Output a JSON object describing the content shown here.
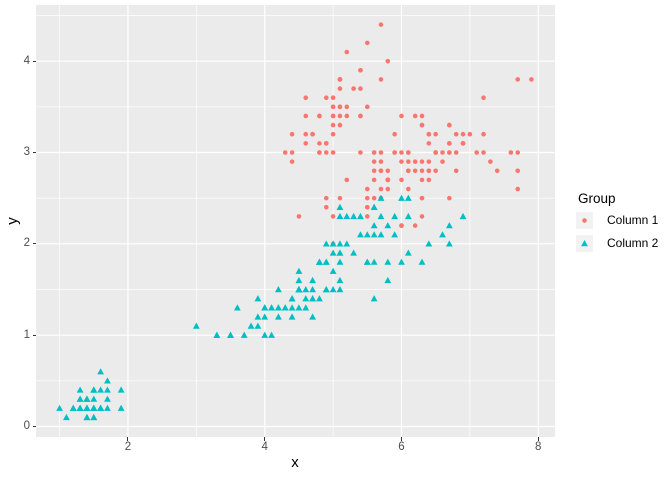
{
  "style": {
    "figure_bg": "#FFFFFF",
    "panel_bg": "#EBEBEB",
    "grid_color": "#FFFFFF",
    "tick_mark_color": "#333333",
    "tick_label_color": "#4D4D4D",
    "text_color": "#000000",
    "legend_key_bg": "#F2F2F2",
    "series1_color": "#F8766D",
    "series2_color": "#00BFC4"
  },
  "chart_data": {
    "type": "scatter",
    "title": "",
    "xlabel": "x",
    "ylabel": "y",
    "xlim": [
      0.655,
      8.245
    ],
    "ylim": [
      -0.115,
      4.615
    ],
    "x_ticks": {
      "major": [
        2,
        4,
        6,
        8
      ],
      "minor": [
        1,
        3,
        5,
        7
      ],
      "labels": [
        "2",
        "4",
        "6",
        "8"
      ]
    },
    "y_ticks": {
      "major": [
        0,
        1,
        2,
        3,
        4
      ],
      "minor": [
        0.5,
        1.5,
        2.5,
        3.5,
        4.5
      ],
      "labels": [
        "0",
        "1",
        "2",
        "3",
        "4"
      ]
    },
    "grid": "major+minor",
    "legend_title": "Group",
    "legend_position": "right",
    "series": [
      {
        "name": "Column 1",
        "marker": "circle",
        "color": "#F8766D",
        "points": [
          [
            5.1,
            3.5
          ],
          [
            4.9,
            3.0
          ],
          [
            4.7,
            3.2
          ],
          [
            4.6,
            3.1
          ],
          [
            5.0,
            3.6
          ],
          [
            5.4,
            3.9
          ],
          [
            4.6,
            3.4
          ],
          [
            5.0,
            3.4
          ],
          [
            4.4,
            2.9
          ],
          [
            4.9,
            3.1
          ],
          [
            5.4,
            3.7
          ],
          [
            4.8,
            3.4
          ],
          [
            4.8,
            3.0
          ],
          [
            4.3,
            3.0
          ],
          [
            5.8,
            4.0
          ],
          [
            5.7,
            4.4
          ],
          [
            5.4,
            3.9
          ],
          [
            5.1,
            3.5
          ],
          [
            5.7,
            3.8
          ],
          [
            5.1,
            3.8
          ],
          [
            5.4,
            3.4
          ],
          [
            5.1,
            3.7
          ],
          [
            4.6,
            3.6
          ],
          [
            5.1,
            3.3
          ],
          [
            4.8,
            3.4
          ],
          [
            5.0,
            3.0
          ],
          [
            5.0,
            3.4
          ],
          [
            5.2,
            3.5
          ],
          [
            5.2,
            3.4
          ],
          [
            4.7,
            3.2
          ],
          [
            4.8,
            3.1
          ],
          [
            5.4,
            3.4
          ],
          [
            5.2,
            4.1
          ],
          [
            5.5,
            4.2
          ],
          [
            4.9,
            3.1
          ],
          [
            5.0,
            3.2
          ],
          [
            5.5,
            3.5
          ],
          [
            4.9,
            3.6
          ],
          [
            4.4,
            3.0
          ],
          [
            5.1,
            3.4
          ],
          [
            5.0,
            3.5
          ],
          [
            4.5,
            2.3
          ],
          [
            4.4,
            3.2
          ],
          [
            5.0,
            3.5
          ],
          [
            5.1,
            3.8
          ],
          [
            4.8,
            3.0
          ],
          [
            5.1,
            3.8
          ],
          [
            4.6,
            3.2
          ],
          [
            5.3,
            3.7
          ],
          [
            5.0,
            3.3
          ],
          [
            7.0,
            3.2
          ],
          [
            6.4,
            3.2
          ],
          [
            6.9,
            3.1
          ],
          [
            5.5,
            2.3
          ],
          [
            6.5,
            2.8
          ],
          [
            5.7,
            2.8
          ],
          [
            6.3,
            3.3
          ],
          [
            4.9,
            2.4
          ],
          [
            6.6,
            2.9
          ],
          [
            5.2,
            2.7
          ],
          [
            5.0,
            2.0
          ],
          [
            5.9,
            3.0
          ],
          [
            6.0,
            2.2
          ],
          [
            6.1,
            2.9
          ],
          [
            5.6,
            2.9
          ],
          [
            6.7,
            3.1
          ],
          [
            5.6,
            3.0
          ],
          [
            5.8,
            2.7
          ],
          [
            6.2,
            2.2
          ],
          [
            5.6,
            2.5
          ],
          [
            5.9,
            3.2
          ],
          [
            6.1,
            2.8
          ],
          [
            6.3,
            2.5
          ],
          [
            6.1,
            2.8
          ],
          [
            6.4,
            2.9
          ],
          [
            6.6,
            3.0
          ],
          [
            6.8,
            2.8
          ],
          [
            6.7,
            3.0
          ],
          [
            6.0,
            2.9
          ],
          [
            5.7,
            2.6
          ],
          [
            5.5,
            2.4
          ],
          [
            5.5,
            2.4
          ],
          [
            5.8,
            2.7
          ],
          [
            6.0,
            2.7
          ],
          [
            5.4,
            3.0
          ],
          [
            6.0,
            3.4
          ],
          [
            6.7,
            3.1
          ],
          [
            6.3,
            2.3
          ],
          [
            5.6,
            3.0
          ],
          [
            5.5,
            2.5
          ],
          [
            5.5,
            2.6
          ],
          [
            6.1,
            3.0
          ],
          [
            5.8,
            2.6
          ],
          [
            5.0,
            2.3
          ],
          [
            5.6,
            2.7
          ],
          [
            5.7,
            3.0
          ],
          [
            5.7,
            2.9
          ],
          [
            6.2,
            2.9
          ],
          [
            5.1,
            2.5
          ],
          [
            5.7,
            2.8
          ],
          [
            6.3,
            3.3
          ],
          [
            5.8,
            2.7
          ],
          [
            7.1,
            3.0
          ],
          [
            6.3,
            2.9
          ],
          [
            6.5,
            3.0
          ],
          [
            7.6,
            3.0
          ],
          [
            4.9,
            2.5
          ],
          [
            7.3,
            2.9
          ],
          [
            6.7,
            2.5
          ],
          [
            7.2,
            3.6
          ],
          [
            6.5,
            3.2
          ],
          [
            6.4,
            2.7
          ],
          [
            6.8,
            3.0
          ],
          [
            5.7,
            2.5
          ],
          [
            5.8,
            2.8
          ],
          [
            6.4,
            3.2
          ],
          [
            6.5,
            3.0
          ],
          [
            7.7,
            3.8
          ],
          [
            7.7,
            2.6
          ],
          [
            6.0,
            2.2
          ],
          [
            6.9,
            3.2
          ],
          [
            5.6,
            2.8
          ],
          [
            7.7,
            2.8
          ],
          [
            6.3,
            2.7
          ],
          [
            6.7,
            3.3
          ],
          [
            7.2,
            3.2
          ],
          [
            6.2,
            2.8
          ],
          [
            6.1,
            3.0
          ],
          [
            6.4,
            2.8
          ],
          [
            7.2,
            3.0
          ],
          [
            7.4,
            2.8
          ],
          [
            7.9,
            3.8
          ],
          [
            6.4,
            2.8
          ],
          [
            6.3,
            2.8
          ],
          [
            6.1,
            2.6
          ],
          [
            7.7,
            3.0
          ],
          [
            6.3,
            3.4
          ],
          [
            6.4,
            3.1
          ],
          [
            6.0,
            3.0
          ],
          [
            6.9,
            3.1
          ],
          [
            6.7,
            3.1
          ],
          [
            6.9,
            3.1
          ],
          [
            5.8,
            2.7
          ],
          [
            6.8,
            3.2
          ],
          [
            6.7,
            3.3
          ],
          [
            6.7,
            3.0
          ],
          [
            6.3,
            2.5
          ],
          [
            6.5,
            3.0
          ],
          [
            6.2,
            3.4
          ],
          [
            5.9,
            3.0
          ]
        ]
      },
      {
        "name": "Column 2",
        "marker": "triangle",
        "color": "#00BFC4",
        "points": [
          [
            1.4,
            0.2
          ],
          [
            1.4,
            0.2
          ],
          [
            1.3,
            0.2
          ],
          [
            1.5,
            0.2
          ],
          [
            1.4,
            0.2
          ],
          [
            1.7,
            0.4
          ],
          [
            1.4,
            0.3
          ],
          [
            1.5,
            0.2
          ],
          [
            1.4,
            0.2
          ],
          [
            1.5,
            0.1
          ],
          [
            1.5,
            0.2
          ],
          [
            1.6,
            0.2
          ],
          [
            1.4,
            0.1
          ],
          [
            1.1,
            0.1
          ],
          [
            1.2,
            0.2
          ],
          [
            1.5,
            0.4
          ],
          [
            1.3,
            0.4
          ],
          [
            1.4,
            0.3
          ],
          [
            1.7,
            0.3
          ],
          [
            1.5,
            0.3
          ],
          [
            1.7,
            0.2
          ],
          [
            1.5,
            0.4
          ],
          [
            1.0,
            0.2
          ],
          [
            1.7,
            0.5
          ],
          [
            1.9,
            0.2
          ],
          [
            1.6,
            0.2
          ],
          [
            1.6,
            0.4
          ],
          [
            1.5,
            0.2
          ],
          [
            1.4,
            0.2
          ],
          [
            1.6,
            0.2
          ],
          [
            1.6,
            0.2
          ],
          [
            1.5,
            0.4
          ],
          [
            1.5,
            0.1
          ],
          [
            1.4,
            0.2
          ],
          [
            1.5,
            0.2
          ],
          [
            1.2,
            0.2
          ],
          [
            1.3,
            0.2
          ],
          [
            1.4,
            0.1
          ],
          [
            1.3,
            0.2
          ],
          [
            1.5,
            0.2
          ],
          [
            1.3,
            0.3
          ],
          [
            1.3,
            0.3
          ],
          [
            1.3,
            0.2
          ],
          [
            1.6,
            0.6
          ],
          [
            1.9,
            0.4
          ],
          [
            1.4,
            0.3
          ],
          [
            1.6,
            0.2
          ],
          [
            1.4,
            0.2
          ],
          [
            1.5,
            0.2
          ],
          [
            1.4,
            0.2
          ],
          [
            4.7,
            1.4
          ],
          [
            4.5,
            1.5
          ],
          [
            4.9,
            1.5
          ],
          [
            4.0,
            1.3
          ],
          [
            4.6,
            1.5
          ],
          [
            4.5,
            1.3
          ],
          [
            4.7,
            1.6
          ],
          [
            3.3,
            1.0
          ],
          [
            4.6,
            1.3
          ],
          [
            3.9,
            1.4
          ],
          [
            3.5,
            1.0
          ],
          [
            4.2,
            1.5
          ],
          [
            4.0,
            1.0
          ],
          [
            4.7,
            1.4
          ],
          [
            3.6,
            1.3
          ],
          [
            4.4,
            1.4
          ],
          [
            4.5,
            1.5
          ],
          [
            4.1,
            1.0
          ],
          [
            4.5,
            1.5
          ],
          [
            3.9,
            1.1
          ],
          [
            4.8,
            1.8
          ],
          [
            4.0,
            1.3
          ],
          [
            4.9,
            1.5
          ],
          [
            4.7,
            1.2
          ],
          [
            4.3,
            1.3
          ],
          [
            4.4,
            1.4
          ],
          [
            4.8,
            1.4
          ],
          [
            5.0,
            1.7
          ],
          [
            4.5,
            1.5
          ],
          [
            3.5,
            1.0
          ],
          [
            3.8,
            1.1
          ],
          [
            3.7,
            1.0
          ],
          [
            3.9,
            1.2
          ],
          [
            5.1,
            1.6
          ],
          [
            4.5,
            1.5
          ],
          [
            4.5,
            1.6
          ],
          [
            4.7,
            1.5
          ],
          [
            4.4,
            1.3
          ],
          [
            4.1,
            1.3
          ],
          [
            4.0,
            1.3
          ],
          [
            4.4,
            1.2
          ],
          [
            4.6,
            1.4
          ],
          [
            4.0,
            1.2
          ],
          [
            3.3,
            1.0
          ],
          [
            4.2,
            1.3
          ],
          [
            4.2,
            1.2
          ],
          [
            4.2,
            1.3
          ],
          [
            4.3,
            1.3
          ],
          [
            3.0,
            1.1
          ],
          [
            4.1,
            1.3
          ],
          [
            6.0,
            2.5
          ],
          [
            5.1,
            1.9
          ],
          [
            5.9,
            2.1
          ],
          [
            5.6,
            1.8
          ],
          [
            5.8,
            2.2
          ],
          [
            6.6,
            2.1
          ],
          [
            4.5,
            1.7
          ],
          [
            6.3,
            1.8
          ],
          [
            5.8,
            1.8
          ],
          [
            6.1,
            2.5
          ],
          [
            5.1,
            2.0
          ],
          [
            5.3,
            1.9
          ],
          [
            5.5,
            2.1
          ],
          [
            5.0,
            2.0
          ],
          [
            5.1,
            2.4
          ],
          [
            5.3,
            2.3
          ],
          [
            5.5,
            1.8
          ],
          [
            6.7,
            2.2
          ],
          [
            6.9,
            2.3
          ],
          [
            5.0,
            1.5
          ],
          [
            5.7,
            2.3
          ],
          [
            4.9,
            2.0
          ],
          [
            6.7,
            2.0
          ],
          [
            4.9,
            1.8
          ],
          [
            5.7,
            2.1
          ],
          [
            6.0,
            1.8
          ],
          [
            4.8,
            1.8
          ],
          [
            4.9,
            1.8
          ],
          [
            5.6,
            2.1
          ],
          [
            5.8,
            1.6
          ],
          [
            6.1,
            1.9
          ],
          [
            6.4,
            2.0
          ],
          [
            5.6,
            2.2
          ],
          [
            5.1,
            1.5
          ],
          [
            5.6,
            1.4
          ],
          [
            6.1,
            2.3
          ],
          [
            5.6,
            2.4
          ],
          [
            5.5,
            1.8
          ],
          [
            4.8,
            1.8
          ],
          [
            5.4,
            2.1
          ],
          [
            5.6,
            2.4
          ],
          [
            5.1,
            2.3
          ],
          [
            5.1,
            1.9
          ],
          [
            5.9,
            2.3
          ],
          [
            5.7,
            2.5
          ],
          [
            5.2,
            2.3
          ],
          [
            5.0,
            1.9
          ],
          [
            5.2,
            2.0
          ],
          [
            5.4,
            2.3
          ],
          [
            5.1,
            1.8
          ]
        ]
      }
    ]
  }
}
